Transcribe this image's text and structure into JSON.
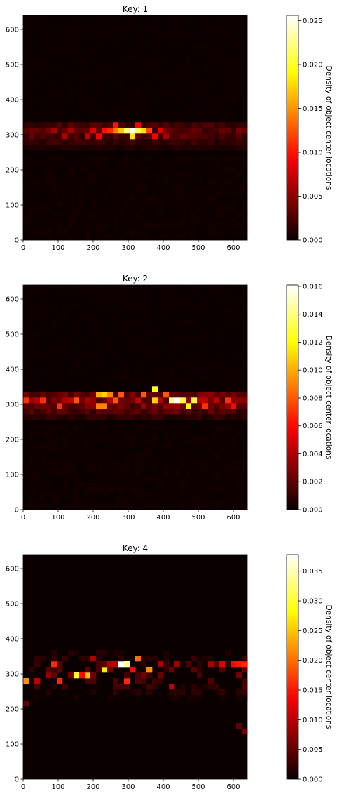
{
  "chart_data": [
    {
      "type": "heatmap",
      "title": "Key: 1",
      "colormap": "hot",
      "xlim": [
        0,
        640
      ],
      "ylim": [
        0,
        640
      ],
      "xticks": [
        0,
        100,
        200,
        300,
        400,
        500,
        600
      ],
      "yticks": [
        0,
        100,
        200,
        300,
        400,
        500,
        600
      ],
      "bin_size": 16,
      "colorbar": {
        "label": "Density of object center locations",
        "range": [
          0,
          0.0256
        ],
        "ticks": [
          "0.000",
          "0.005",
          "0.010",
          "0.015",
          "0.020",
          "0.025"
        ]
      },
      "hotspots": [
        {
          "x": 312,
          "y": 312,
          "value": 0.0256
        },
        {
          "x": 296,
          "y": 312,
          "value": 0.022
        },
        {
          "x": 328,
          "y": 312,
          "value": 0.021
        },
        {
          "x": 312,
          "y": 296,
          "value": 0.018
        },
        {
          "x": 280,
          "y": 312,
          "value": 0.017
        },
        {
          "x": 344,
          "y": 312,
          "value": 0.018
        },
        {
          "x": 264,
          "y": 312,
          "value": 0.014
        },
        {
          "x": 248,
          "y": 312,
          "value": 0.011
        },
        {
          "x": 232,
          "y": 312,
          "value": 0.01
        },
        {
          "x": 360,
          "y": 312,
          "value": 0.012
        },
        {
          "x": 376,
          "y": 296,
          "value": 0.009
        },
        {
          "x": 264,
          "y": 328,
          "value": 0.01
        },
        {
          "x": 328,
          "y": 328,
          "value": 0.009
        },
        {
          "x": 216,
          "y": 296,
          "value": 0.009
        },
        {
          "x": 184,
          "y": 296,
          "value": 0.007
        },
        {
          "x": 136,
          "y": 312,
          "value": 0.006
        },
        {
          "x": 120,
          "y": 296,
          "value": 0.006
        },
        {
          "x": 88,
          "y": 312,
          "value": 0.006
        },
        {
          "x": 392,
          "y": 312,
          "value": 0.008
        },
        {
          "x": 408,
          "y": 296,
          "value": 0.006
        },
        {
          "x": 200,
          "y": 312,
          "value": 0.008
        }
      ],
      "band": {
        "y_min": 240,
        "y_max": 340,
        "peak_y": 310,
        "base_value": 0.003
      }
    },
    {
      "type": "heatmap",
      "title": "Key: 2",
      "colormap": "hot",
      "xlim": [
        0,
        640
      ],
      "ylim": [
        0,
        640
      ],
      "xticks": [
        0,
        100,
        200,
        300,
        400,
        500,
        600
      ],
      "yticks": [
        0,
        100,
        200,
        300,
        400,
        500,
        600
      ],
      "bin_size": 16,
      "colorbar": {
        "label": "Density of object center locations",
        "range": [
          0,
          0.0161
        ],
        "ticks": [
          "0.000",
          "0.002",
          "0.004",
          "0.006",
          "0.008",
          "0.010",
          "0.012",
          "0.014",
          "0.016"
        ]
      },
      "hotspots": [
        {
          "x": 440,
          "y": 312,
          "value": 0.0161
        },
        {
          "x": 424,
          "y": 312,
          "value": 0.014
        },
        {
          "x": 456,
          "y": 312,
          "value": 0.013
        },
        {
          "x": 472,
          "y": 296,
          "value": 0.012
        },
        {
          "x": 488,
          "y": 312,
          "value": 0.013
        },
        {
          "x": 376,
          "y": 344,
          "value": 0.012
        },
        {
          "x": 376,
          "y": 312,
          "value": 0.011
        },
        {
          "x": 232,
          "y": 328,
          "value": 0.011
        },
        {
          "x": 216,
          "y": 328,
          "value": 0.01
        },
        {
          "x": 216,
          "y": 296,
          "value": 0.009
        },
        {
          "x": 248,
          "y": 328,
          "value": 0.009
        },
        {
          "x": 232,
          "y": 296,
          "value": 0.009
        },
        {
          "x": 264,
          "y": 312,
          "value": 0.008
        },
        {
          "x": 280,
          "y": 328,
          "value": 0.008
        },
        {
          "x": 344,
          "y": 328,
          "value": 0.008
        },
        {
          "x": 152,
          "y": 312,
          "value": 0.008
        },
        {
          "x": 104,
          "y": 296,
          "value": 0.007
        },
        {
          "x": 56,
          "y": 312,
          "value": 0.007
        },
        {
          "x": 8,
          "y": 312,
          "value": 0.007
        },
        {
          "x": 584,
          "y": 312,
          "value": 0.007
        },
        {
          "x": 600,
          "y": 296,
          "value": 0.006
        },
        {
          "x": 520,
          "y": 296,
          "value": 0.007
        },
        {
          "x": 408,
          "y": 328,
          "value": 0.008
        }
      ],
      "band": {
        "y_min": 240,
        "y_max": 340,
        "peak_y": 310,
        "base_value": 0.003
      }
    },
    {
      "type": "heatmap",
      "title": "Key: 4",
      "colormap": "hot",
      "xlim": [
        0,
        640
      ],
      "ylim": [
        0,
        640
      ],
      "xticks": [
        0,
        100,
        200,
        300,
        400,
        500,
        600
      ],
      "yticks": [
        0,
        100,
        200,
        300,
        400,
        500,
        600
      ],
      "bin_size": 16,
      "colorbar": {
        "label": "Density of object center locations",
        "range": [
          0,
          0.0378
        ],
        "ticks": [
          "0.000",
          "0.005",
          "0.010",
          "0.015",
          "0.020",
          "0.025",
          "0.030",
          "0.035"
        ]
      },
      "hotspots": [
        {
          "x": 280,
          "y": 328,
          "value": 0.0378
        },
        {
          "x": 296,
          "y": 328,
          "value": 0.034
        },
        {
          "x": 152,
          "y": 296,
          "value": 0.03
        },
        {
          "x": 184,
          "y": 296,
          "value": 0.025
        },
        {
          "x": 232,
          "y": 312,
          "value": 0.027
        },
        {
          "x": 360,
          "y": 312,
          "value": 0.022
        },
        {
          "x": 328,
          "y": 344,
          "value": 0.02
        },
        {
          "x": 8,
          "y": 280,
          "value": 0.022
        },
        {
          "x": 88,
          "y": 328,
          "value": 0.016
        },
        {
          "x": 104,
          "y": 280,
          "value": 0.016
        },
        {
          "x": 168,
          "y": 296,
          "value": 0.014
        },
        {
          "x": 312,
          "y": 312,
          "value": 0.014
        },
        {
          "x": 296,
          "y": 280,
          "value": 0.016
        },
        {
          "x": 616,
          "y": 328,
          "value": 0.015
        },
        {
          "x": 632,
          "y": 328,
          "value": 0.016
        },
        {
          "x": 600,
          "y": 328,
          "value": 0.014
        },
        {
          "x": 568,
          "y": 328,
          "value": 0.012
        },
        {
          "x": 424,
          "y": 264,
          "value": 0.01
        },
        {
          "x": 40,
          "y": 280,
          "value": 0.01
        },
        {
          "x": 72,
          "y": 296,
          "value": 0.008
        },
        {
          "x": 264,
          "y": 328,
          "value": 0.01
        },
        {
          "x": 248,
          "y": 328,
          "value": 0.009
        },
        {
          "x": 200,
          "y": 344,
          "value": 0.009
        },
        {
          "x": 392,
          "y": 328,
          "value": 0.009
        },
        {
          "x": 440,
          "y": 328,
          "value": 0.008
        },
        {
          "x": 536,
          "y": 328,
          "value": 0.009
        },
        {
          "x": 616,
          "y": 152,
          "value": 0.005
        },
        {
          "x": 632,
          "y": 136,
          "value": 0.006
        },
        {
          "x": 8,
          "y": 216,
          "value": 0.005
        }
      ],
      "sparse": true,
      "band": {
        "y_min": 232,
        "y_max": 360,
        "peak_y": 300,
        "base_value": 0.0015
      }
    }
  ]
}
